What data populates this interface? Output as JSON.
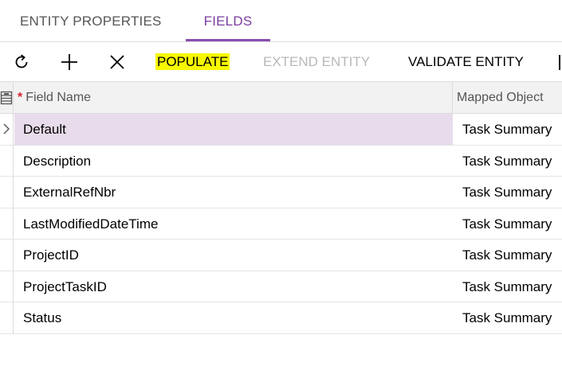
{
  "tabs": [
    {
      "label": "ENTITY PROPERTIES",
      "active": false
    },
    {
      "label": "FIELDS",
      "active": true
    }
  ],
  "toolbar": {
    "refresh_icon": "refresh-icon",
    "add_icon": "plus-icon",
    "delete_icon": "close-icon",
    "populate_label": "POPULATE",
    "extend_label": "EXTEND ENTITY",
    "validate_label": "VALIDATE ENTITY"
  },
  "grid": {
    "columns": {
      "required_marker": "*",
      "field_name": "Field Name",
      "mapped_object": "Mapped Object"
    },
    "rows": [
      {
        "field_name": "Default",
        "mapped_object": "Task Summary",
        "active": true
      },
      {
        "field_name": "Description",
        "mapped_object": "Task Summary"
      },
      {
        "field_name": "ExternalRefNbr",
        "mapped_object": "Task Summary"
      },
      {
        "field_name": "LastModifiedDateTime",
        "mapped_object": "Task Summary"
      },
      {
        "field_name": "ProjectID",
        "mapped_object": "Task Summary"
      },
      {
        "field_name": "ProjectTaskID",
        "mapped_object": "Task Summary"
      },
      {
        "field_name": "Status",
        "mapped_object": "Task Summary"
      }
    ]
  },
  "colors": {
    "accent": "#8a4fb0",
    "highlight": "#f7f700",
    "active_row": "#e8dcec",
    "required": "#d9232d"
  }
}
